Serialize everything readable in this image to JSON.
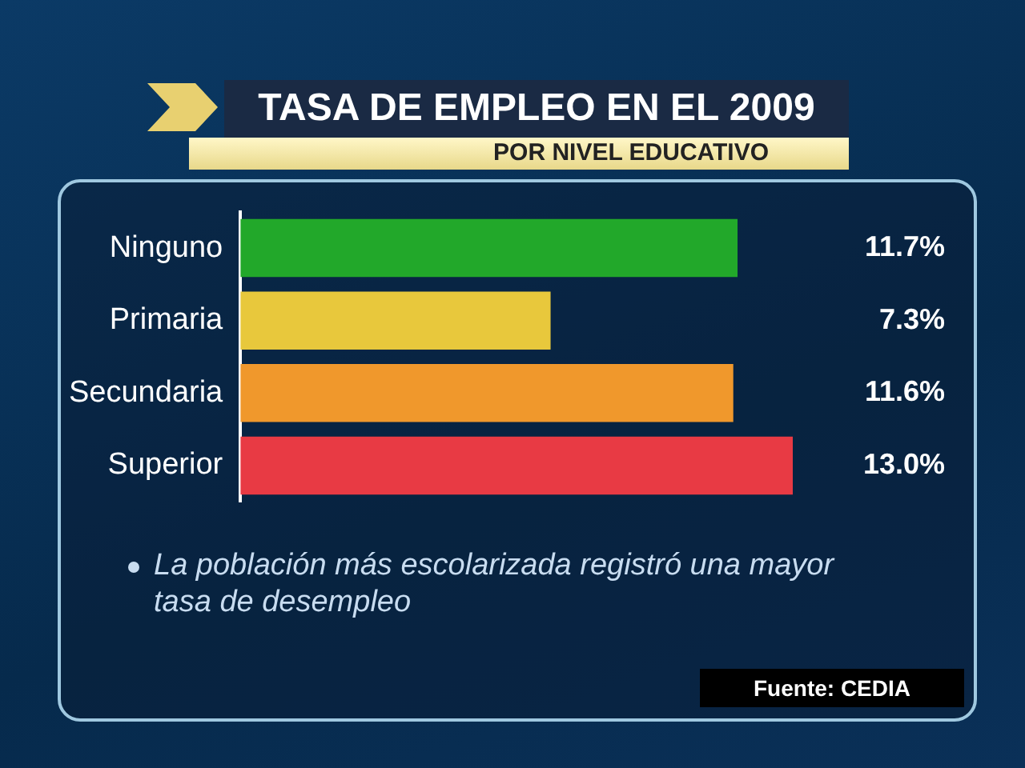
{
  "chart_data": {
    "type": "bar",
    "orientation": "horizontal",
    "title": "TASA DE EMPLEO EN EL 2009",
    "subtitle": "POR NIVEL EDUCATIVO",
    "categories": [
      "Ninguno",
      "Primaria",
      "Secundaria",
      "Superior"
    ],
    "values": [
      11.7,
      7.3,
      11.6,
      13.0
    ],
    "colors": [
      "#22a82a",
      "#e8c83c",
      "#f0982c",
      "#e83a44"
    ],
    "value_labels": [
      "11.7%",
      "7.3%",
      "11.6%",
      "13.0%"
    ],
    "legend": false,
    "annotations": [
      "La población más escolarizada registró una mayor tasa de desempleo",
      "Fuente: CEDIA"
    ]
  }
}
